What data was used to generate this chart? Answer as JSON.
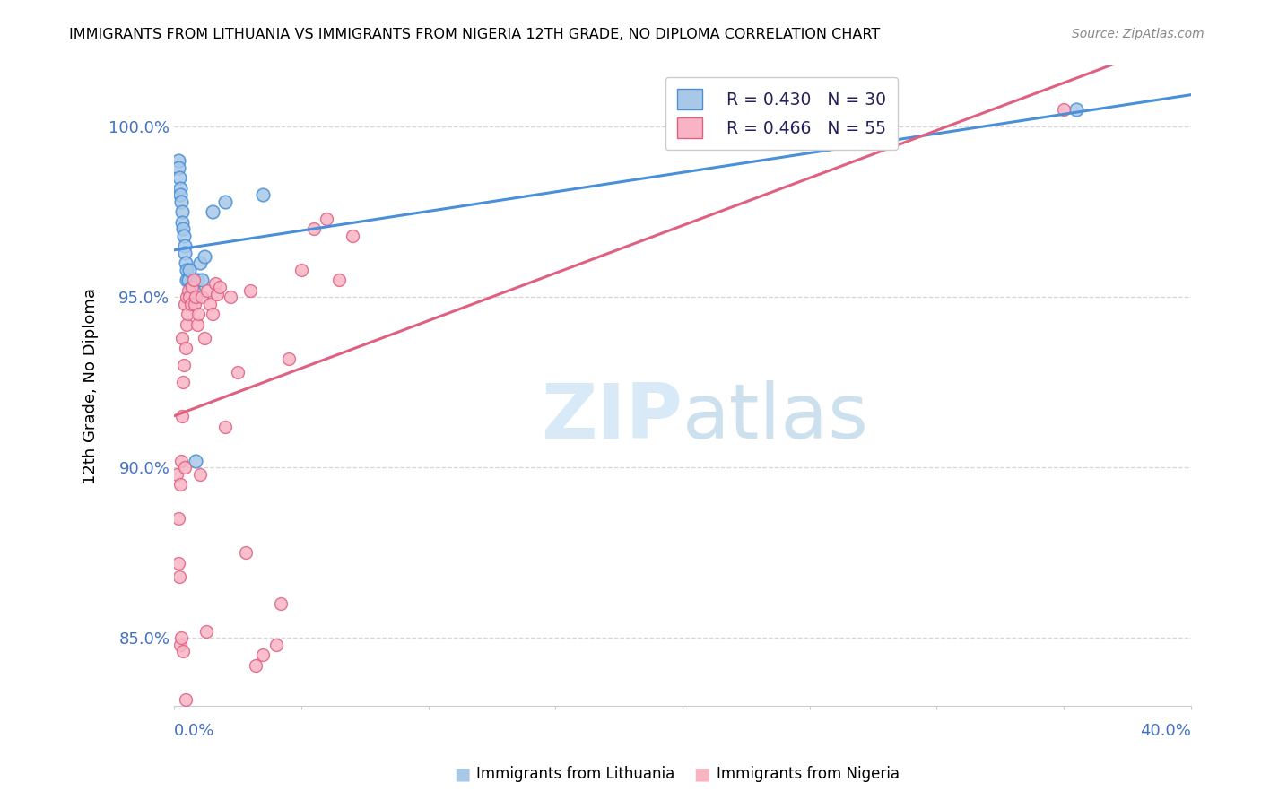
{
  "title": "IMMIGRANTS FROM LITHUANIA VS IMMIGRANTS FROM NIGERIA 12TH GRADE, NO DIPLOMA CORRELATION CHART",
  "source": "Source: ZipAtlas.com",
  "ylabel": "12th Grade, No Diploma",
  "xmin": 0.0,
  "xmax": 40.0,
  "ymin": 83.0,
  "ymax": 101.8,
  "yticks": [
    85.0,
    90.0,
    95.0,
    100.0
  ],
  "legend_R1": "R = 0.430",
  "legend_N1": "N = 30",
  "legend_R2": "R = 0.466",
  "legend_N2": "N = 55",
  "color_lithuania_fill": "#a8c8e8",
  "color_lithuania_edge": "#4a90d9",
  "color_nigeria_fill": "#f8b4c4",
  "color_nigeria_edge": "#e06080",
  "color_line_lithuania": "#4a90d9",
  "color_line_nigeria": "#e06080",
  "color_axis_blue": "#4472c4",
  "watermark_color": "#d8eaf8",
  "lithuania_x": [
    0.15,
    0.18,
    0.2,
    0.22,
    0.25,
    0.28,
    0.3,
    0.32,
    0.35,
    0.38,
    0.4,
    0.42,
    0.45,
    0.48,
    0.5,
    0.55,
    0.6,
    0.65,
    0.7,
    0.75,
    0.8,
    0.85,
    0.9,
    1.0,
    1.1,
    1.2,
    1.5,
    2.0,
    3.5,
    35.5
  ],
  "lithuania_y": [
    99.0,
    98.8,
    98.5,
    98.2,
    98.0,
    97.8,
    97.5,
    97.2,
    97.0,
    96.8,
    96.5,
    96.3,
    96.0,
    95.8,
    95.5,
    95.5,
    95.8,
    95.3,
    95.0,
    95.2,
    95.0,
    90.2,
    95.5,
    96.0,
    95.5,
    96.2,
    97.5,
    97.8,
    98.0,
    100.5
  ],
  "nigeria_x": [
    0.1,
    0.15,
    0.18,
    0.2,
    0.22,
    0.25,
    0.28,
    0.3,
    0.32,
    0.35,
    0.38,
    0.4,
    0.42,
    0.45,
    0.48,
    0.5,
    0.52,
    0.55,
    0.6,
    0.65,
    0.7,
    0.75,
    0.8,
    0.85,
    0.9,
    0.95,
    1.0,
    1.1,
    1.2,
    1.3,
    1.4,
    1.5,
    1.6,
    1.7,
    1.8,
    2.0,
    2.2,
    2.5,
    3.0,
    3.5,
    4.0,
    4.5,
    5.0,
    5.5,
    6.0,
    7.0,
    0.28,
    0.35,
    0.45,
    1.25,
    2.8,
    3.2,
    4.2,
    6.5,
    35.0
  ],
  "nigeria_y": [
    89.8,
    88.5,
    87.2,
    86.8,
    84.8,
    89.5,
    90.2,
    91.5,
    93.8,
    92.5,
    93.0,
    90.0,
    94.8,
    93.5,
    94.2,
    95.0,
    94.5,
    95.2,
    95.0,
    94.8,
    95.3,
    95.5,
    94.8,
    95.0,
    94.2,
    94.5,
    89.8,
    95.0,
    93.8,
    95.2,
    94.8,
    94.5,
    95.4,
    95.1,
    95.3,
    91.2,
    95.0,
    92.8,
    95.2,
    84.5,
    84.8,
    93.2,
    95.8,
    97.0,
    97.3,
    96.8,
    85.0,
    84.6,
    83.2,
    85.2,
    87.5,
    84.2,
    86.0,
    95.5,
    100.5
  ]
}
